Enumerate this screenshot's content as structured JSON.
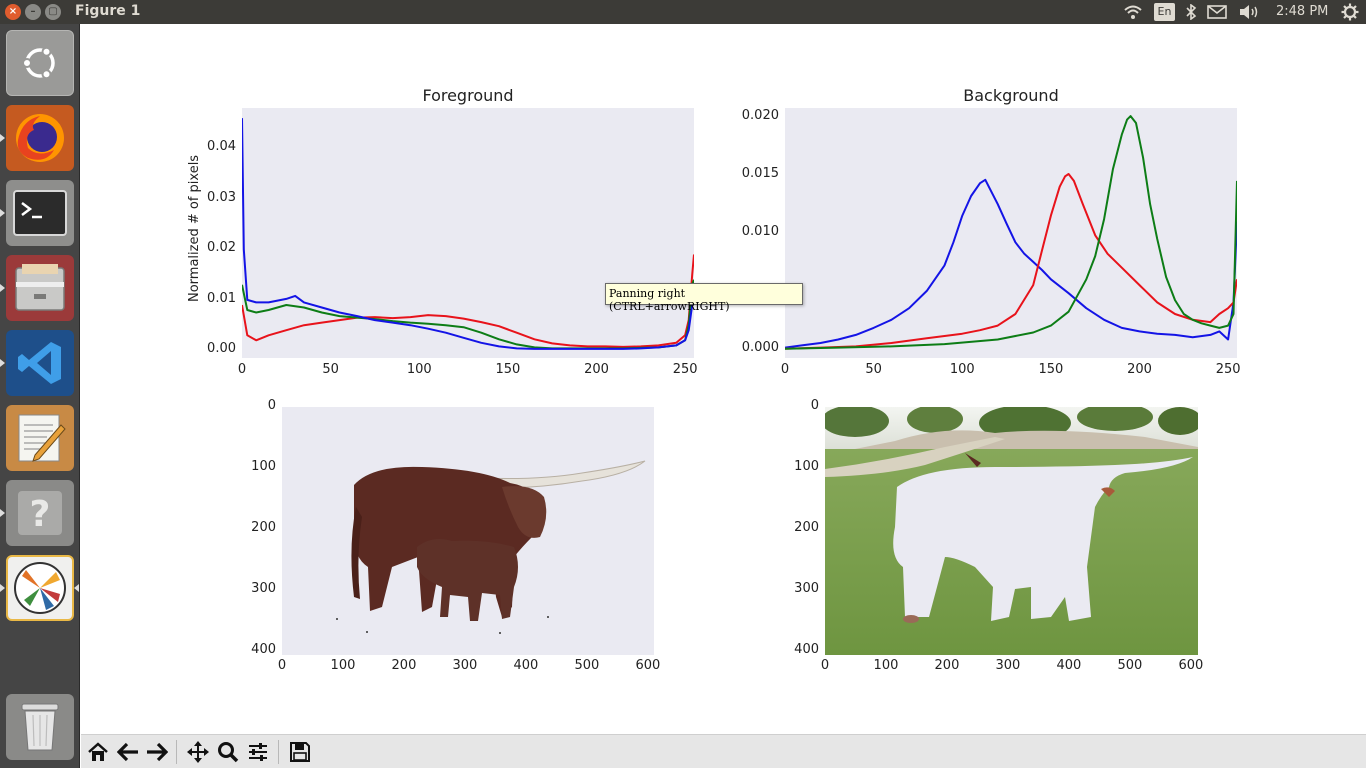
{
  "window": {
    "title": "Figure 1",
    "close_glyph": "×",
    "min_glyph": "–",
    "max_glyph": "▢"
  },
  "tray": {
    "lang": "En",
    "clock": "2:48 PM",
    "icons": [
      "wifi-icon",
      "bluetooth-icon",
      "mail-icon",
      "volume-icon",
      "settings-gear-icon"
    ]
  },
  "launcher": {
    "items": [
      "ubuntu-dash",
      "firefox",
      "terminal",
      "files",
      "vscode",
      "text-editor",
      "help",
      "matplotlib",
      "trash"
    ]
  },
  "tooltip": {
    "text": "Panning right (CTRL+arrowRIGHT)"
  },
  "toolbar": {
    "buttons": [
      "home",
      "back",
      "forward",
      "pan",
      "zoom",
      "configure-subplots",
      "save"
    ]
  },
  "colors": {
    "axes_bg": "#eaeaf2",
    "red": "#e8131b",
    "green": "#0d7d16",
    "blue": "#1414e6"
  },
  "chart_data": [
    {
      "type": "line",
      "title": "Foreground",
      "xlabel": "",
      "ylabel": "Normalized # of pixels",
      "xlim": [
        0,
        255
      ],
      "ylim": [
        -0.0015,
        0.048
      ],
      "xticks": [
        "0",
        "50",
        "100",
        "150",
        "200",
        "250"
      ],
      "yticks": [
        "0.00",
        "0.01",
        "0.02",
        "0.03",
        "0.04"
      ],
      "series": [
        {
          "color": "red",
          "x": [
            0,
            3,
            8,
            15,
            25,
            35,
            45,
            55,
            65,
            75,
            85,
            95,
            105,
            115,
            125,
            135,
            145,
            155,
            165,
            175,
            185,
            195,
            205,
            215,
            225,
            235,
            245,
            250,
            252,
            254,
            255
          ],
          "y": [
            0.009,
            0.003,
            0.002,
            0.003,
            0.004,
            0.005,
            0.0055,
            0.006,
            0.0065,
            0.0066,
            0.0064,
            0.0066,
            0.007,
            0.0068,
            0.0063,
            0.0056,
            0.0048,
            0.0035,
            0.0022,
            0.0014,
            0.001,
            0.0008,
            0.0008,
            0.0007,
            0.0008,
            0.001,
            0.0015,
            0.003,
            0.006,
            0.015,
            0.019
          ]
        },
        {
          "color": "green",
          "x": [
            0,
            3,
            8,
            15,
            25,
            35,
            45,
            55,
            65,
            75,
            85,
            95,
            105,
            115,
            125,
            135,
            145,
            155,
            165,
            175,
            185,
            195,
            205,
            215,
            225,
            235,
            245,
            250,
            252,
            254,
            255
          ],
          "y": [
            0.013,
            0.008,
            0.0075,
            0.008,
            0.009,
            0.0085,
            0.0075,
            0.0068,
            0.0065,
            0.0062,
            0.0058,
            0.0055,
            0.0053,
            0.005,
            0.0046,
            0.0035,
            0.0022,
            0.0012,
            0.0006,
            0.0004,
            0.0004,
            0.0004,
            0.0004,
            0.0004,
            0.0005,
            0.0006,
            0.001,
            0.002,
            0.005,
            0.013,
            0.014
          ]
        },
        {
          "color": "blue",
          "x": [
            0,
            1,
            3,
            8,
            15,
            25,
            30,
            35,
            45,
            55,
            65,
            75,
            85,
            95,
            105,
            115,
            125,
            135,
            145,
            155,
            165,
            175,
            185,
            195,
            205,
            215,
            225,
            235,
            245,
            250,
            252,
            254,
            255
          ],
          "y": [
            0.046,
            0.02,
            0.01,
            0.0095,
            0.0095,
            0.0102,
            0.0108,
            0.0095,
            0.0085,
            0.0075,
            0.0068,
            0.006,
            0.0055,
            0.005,
            0.0043,
            0.0035,
            0.0025,
            0.0015,
            0.0008,
            0.0004,
            0.0003,
            0.0003,
            0.0003,
            0.0003,
            0.0003,
            0.0003,
            0.0004,
            0.0006,
            0.001,
            0.002,
            0.004,
            0.009,
            0.01
          ]
        }
      ]
    },
    {
      "type": "line",
      "title": "Background",
      "xlabel": "",
      "ylabel": "",
      "xlim": [
        0,
        255
      ],
      "ylim": [
        -0.0008,
        0.0208
      ],
      "xticks": [
        "0",
        "50",
        "100",
        "150",
        "200",
        "250"
      ],
      "yticks": [
        "0.000",
        "0.005",
        "0.010",
        "0.015",
        "0.020"
      ],
      "series": [
        {
          "color": "blue",
          "x": [
            0,
            10,
            20,
            30,
            40,
            50,
            60,
            70,
            80,
            90,
            95,
            100,
            105,
            110,
            113,
            115,
            120,
            125,
            130,
            135,
            140,
            145,
            150,
            160,
            170,
            180,
            190,
            200,
            210,
            220,
            230,
            240,
            245,
            250,
            253,
            255
          ],
          "y": [
            0.0001,
            0.0003,
            0.0005,
            0.0008,
            0.0012,
            0.0018,
            0.0025,
            0.0035,
            0.005,
            0.0072,
            0.0092,
            0.0115,
            0.0132,
            0.0143,
            0.0146,
            0.014,
            0.0125,
            0.0108,
            0.0092,
            0.0082,
            0.0075,
            0.0068,
            0.006,
            0.0048,
            0.0035,
            0.0025,
            0.0018,
            0.0015,
            0.0013,
            0.0012,
            0.001,
            0.0012,
            0.0015,
            0.0008,
            0.004,
            0.011
          ]
        },
        {
          "color": "red",
          "x": [
            0,
            20,
            40,
            60,
            80,
            100,
            110,
            120,
            130,
            140,
            145,
            150,
            155,
            158,
            160,
            163,
            168,
            175,
            182,
            190,
            200,
            210,
            220,
            230,
            240,
            245,
            250,
            253,
            255
          ],
          "y": [
            0.0,
            0.0001,
            0.0002,
            0.0005,
            0.0009,
            0.0013,
            0.0016,
            0.002,
            0.003,
            0.0055,
            0.0085,
            0.0115,
            0.014,
            0.0149,
            0.0151,
            0.0145,
            0.0125,
            0.0098,
            0.0082,
            0.007,
            0.0055,
            0.004,
            0.003,
            0.0025,
            0.0023,
            0.003,
            0.0035,
            0.004,
            0.006
          ]
        },
        {
          "color": "green",
          "x": [
            0,
            30,
            60,
            90,
            120,
            140,
            150,
            160,
            170,
            175,
            180,
            185,
            190,
            193,
            195,
            198,
            202,
            206,
            210,
            215,
            220,
            225,
            230,
            235,
            240,
            245,
            250,
            253,
            255
          ],
          "y": [
            0.0,
            0.0001,
            0.0002,
            0.0004,
            0.0008,
            0.0014,
            0.002,
            0.0032,
            0.006,
            0.008,
            0.0112,
            0.0155,
            0.0185,
            0.0198,
            0.0201,
            0.0195,
            0.0165,
            0.0125,
            0.0095,
            0.0062,
            0.0042,
            0.003,
            0.0025,
            0.0022,
            0.002,
            0.0018,
            0.002,
            0.003,
            0.0145
          ]
        }
      ]
    }
  ],
  "images": [
    {
      "name": "foreground-cattle",
      "xticks": [
        "0",
        "100",
        "200",
        "300",
        "400",
        "500",
        "600"
      ],
      "yticks": [
        "0",
        "100",
        "200",
        "300",
        "400"
      ]
    },
    {
      "name": "background-field",
      "xticks": [
        "0",
        "100",
        "200",
        "300",
        "400",
        "500",
        "600"
      ],
      "yticks": [
        "0",
        "100",
        "200",
        "300",
        "400"
      ]
    }
  ]
}
